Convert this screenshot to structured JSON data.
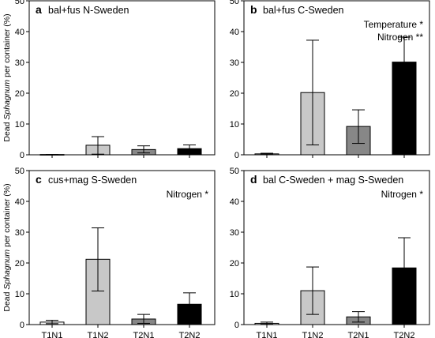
{
  "figure": {
    "y_axis_label_parts": [
      "Dead ",
      "Sphagnum",
      " per container (%)"
    ]
  },
  "chart_data": [
    {
      "type": "bar",
      "letter": "a",
      "title": "bal+fus N-Sweden",
      "annotations": [],
      "categories": [
        "T1N1",
        "T1N2",
        "T2N1",
        "T2N2"
      ],
      "values": [
        0.1,
        3.1,
        1.7,
        2.0
      ],
      "error_upper": [
        0.1,
        5.9,
        2.9,
        3.2
      ],
      "error_lower": [
        0.0,
        0.2,
        0.6,
        0.8
      ],
      "colors": [
        "#ffffff",
        "#c8c8c8",
        "#878787",
        "#000000"
      ],
      "ylim": [
        0,
        50
      ],
      "yticks": [
        0,
        10,
        20,
        30,
        40,
        50
      ],
      "show_x_ticklabels": false
    },
    {
      "type": "bar",
      "letter": "b",
      "title": "bal+fus C-Sweden",
      "annotations": [
        "Temperature *",
        "Nitrogen **"
      ],
      "categories": [
        "T1N1",
        "T1N2",
        "T2N1",
        "T2N2"
      ],
      "values": [
        0.3,
        20.2,
        9.2,
        30.1
      ],
      "error_upper": [
        0.5,
        37.2,
        14.6,
        38.2
      ],
      "error_lower": [
        0.1,
        3.2,
        3.7,
        22.0
      ],
      "colors": [
        "#ffffff",
        "#c8c8c8",
        "#878787",
        "#000000"
      ],
      "ylim": [
        0,
        50
      ],
      "yticks": [
        0,
        10,
        20,
        30,
        40,
        50
      ],
      "show_x_ticklabels": false
    },
    {
      "type": "bar",
      "letter": "c",
      "title": "cus+mag S-Sweden",
      "annotations": [
        "Nitrogen *"
      ],
      "categories": [
        "T1N1",
        "T1N2",
        "T2N1",
        "T2N2"
      ],
      "values": [
        0.8,
        21.2,
        1.8,
        6.6
      ],
      "error_upper": [
        1.4,
        31.4,
        3.3,
        10.3
      ],
      "error_lower": [
        0.3,
        10.9,
        0.4,
        2.5
      ],
      "colors": [
        "#ffffff",
        "#c8c8c8",
        "#878787",
        "#000000"
      ],
      "ylim": [
        0,
        50
      ],
      "yticks": [
        0,
        10,
        20,
        30,
        40,
        50
      ],
      "show_x_ticklabels": true
    },
    {
      "type": "bar",
      "letter": "d",
      "title": "bal C-Sweden + mag S-Sweden",
      "annotations": [
        "Nitrogen *"
      ],
      "categories": [
        "T1N1",
        "T1N2",
        "T2N1",
        "T2N2"
      ],
      "values": [
        0.4,
        11.0,
        2.5,
        18.4
      ],
      "error_upper": [
        0.8,
        18.7,
        4.2,
        28.2
      ],
      "error_lower": [
        0.1,
        3.3,
        0.8,
        8.8
      ],
      "colors": [
        "#ffffff",
        "#c8c8c8",
        "#878787",
        "#000000"
      ],
      "ylim": [
        0,
        50
      ],
      "yticks": [
        0,
        10,
        20,
        30,
        40,
        50
      ],
      "show_x_ticklabels": true
    }
  ]
}
